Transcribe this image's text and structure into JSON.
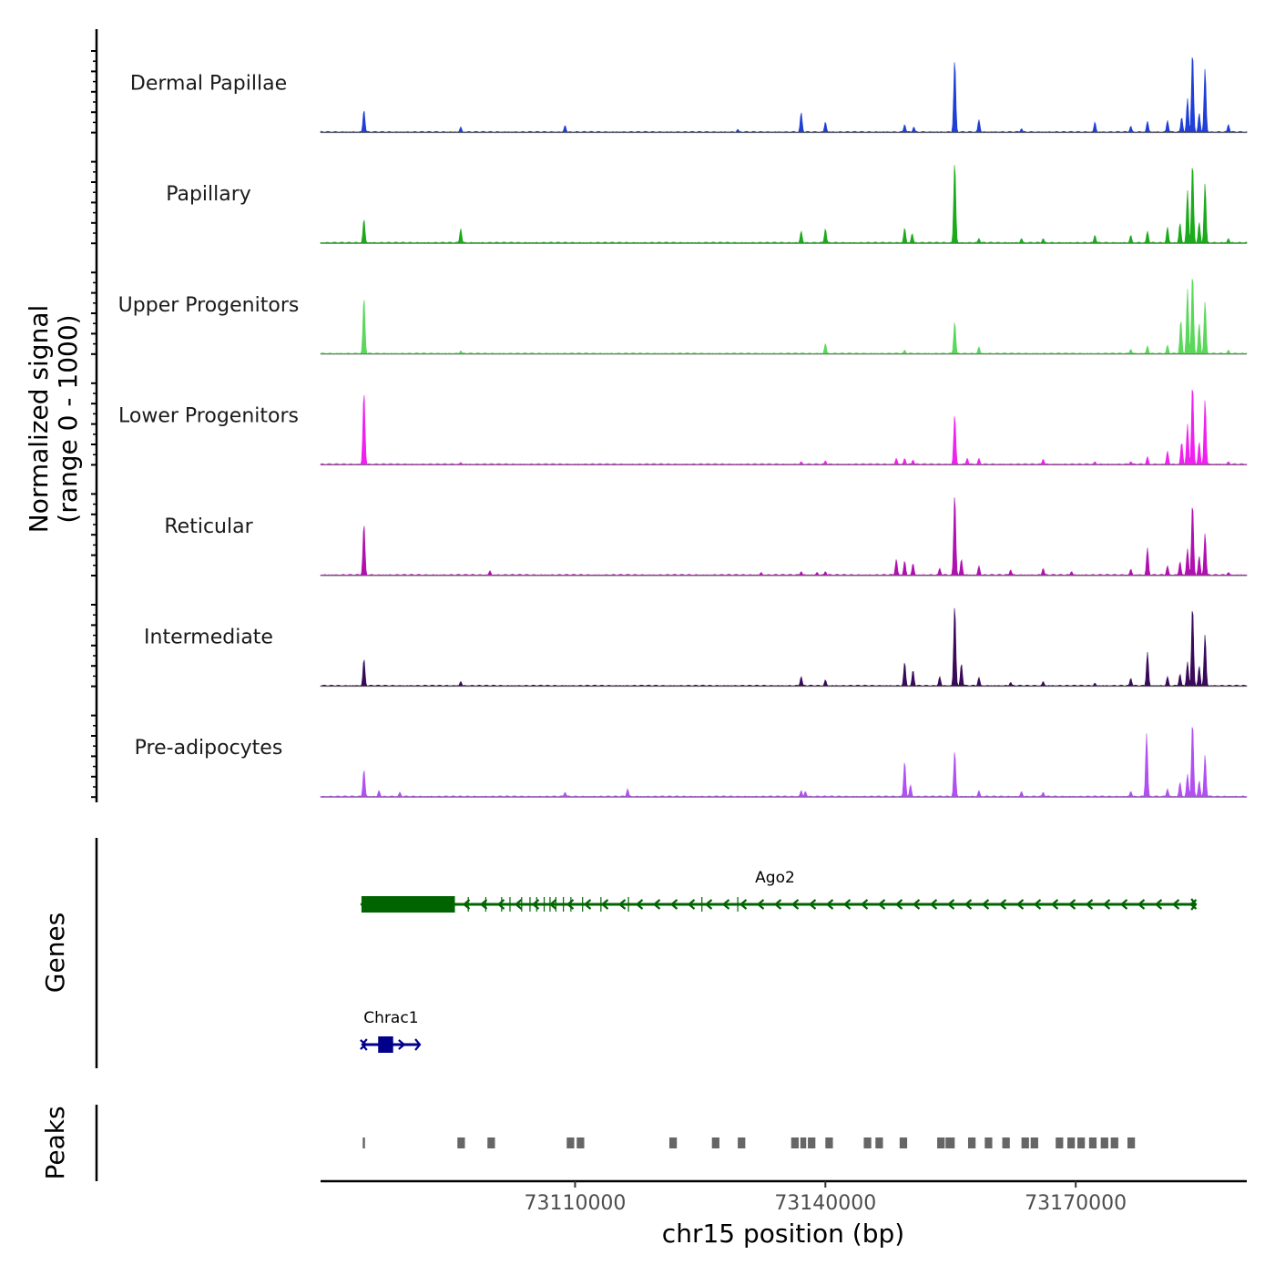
{
  "chart_data": {
    "type": "area",
    "title": "",
    "chromosome": "chr15",
    "xlabel": "chr15 position (bp)",
    "ylabel_line1": "Normalized signal",
    "ylabel_line2": "(range 0 - 1000)",
    "xlim": [
      73079500,
      73190500
    ],
    "x_ticks": [
      {
        "value": 73110000,
        "label": "73110000"
      },
      {
        "value": 73140000,
        "label": "73140000"
      },
      {
        "value": 73170000,
        "label": "73170000"
      }
    ],
    "signal_range": [
      0,
      1000
    ],
    "tracks": [
      {
        "name": "Dermal Papillae",
        "color": "#1f3fd6",
        "peaks": [
          [
            73084700,
            280
          ],
          [
            73096300,
            70
          ],
          [
            73108800,
            90
          ],
          [
            73129500,
            40
          ],
          [
            73137100,
            250
          ],
          [
            73140000,
            130
          ],
          [
            73149500,
            100
          ],
          [
            73150600,
            70
          ],
          [
            73155500,
            900
          ],
          [
            73158400,
            160
          ],
          [
            73163500,
            50
          ],
          [
            73172300,
            130
          ],
          [
            73176600,
            80
          ],
          [
            73178600,
            140
          ],
          [
            73181000,
            150
          ],
          [
            73182700,
            190
          ],
          [
            73183400,
            420
          ],
          [
            73184000,
            1000
          ],
          [
            73184800,
            240
          ],
          [
            73185500,
            790
          ],
          [
            73188300,
            100
          ]
        ]
      },
      {
        "name": "Papillary",
        "color": "#1aaa1a",
        "peaks": [
          [
            73084700,
            300
          ],
          [
            73096300,
            180
          ],
          [
            73137100,
            150
          ],
          [
            73140000,
            180
          ],
          [
            73149500,
            190
          ],
          [
            73150400,
            120
          ],
          [
            73155500,
            1000
          ],
          [
            73158400,
            60
          ],
          [
            73163500,
            60
          ],
          [
            73166100,
            60
          ],
          [
            73172300,
            100
          ],
          [
            73176600,
            100
          ],
          [
            73178600,
            150
          ],
          [
            73181000,
            200
          ],
          [
            73182500,
            250
          ],
          [
            73183400,
            650
          ],
          [
            73184000,
            1000
          ],
          [
            73184800,
            260
          ],
          [
            73185500,
            740
          ],
          [
            73188300,
            60
          ]
        ]
      },
      {
        "name": "Upper Progenitors",
        "color": "#5ad85a",
        "peaks": [
          [
            73084700,
            700
          ],
          [
            73096300,
            40
          ],
          [
            73140000,
            130
          ],
          [
            73149500,
            50
          ],
          [
            73155500,
            400
          ],
          [
            73158400,
            90
          ],
          [
            73176600,
            60
          ],
          [
            73178600,
            100
          ],
          [
            73181000,
            110
          ],
          [
            73182600,
            420
          ],
          [
            73183400,
            800
          ],
          [
            73184000,
            1000
          ],
          [
            73184800,
            380
          ],
          [
            73185500,
            650
          ],
          [
            73188300,
            50
          ]
        ]
      },
      {
        "name": "Lower Progenitors",
        "color": "#f020f0",
        "peaks": [
          [
            73084700,
            900
          ],
          [
            73096300,
            30
          ],
          [
            73137100,
            40
          ],
          [
            73140000,
            50
          ],
          [
            73148500,
            80
          ],
          [
            73149500,
            80
          ],
          [
            73150500,
            60
          ],
          [
            73155500,
            620
          ],
          [
            73157000,
            80
          ],
          [
            73158400,
            80
          ],
          [
            73166100,
            70
          ],
          [
            73172300,
            40
          ],
          [
            73176600,
            40
          ],
          [
            73178600,
            100
          ],
          [
            73181000,
            170
          ],
          [
            73182700,
            280
          ],
          [
            73183400,
            500
          ],
          [
            73184000,
            1000
          ],
          [
            73184800,
            280
          ],
          [
            73185500,
            800
          ],
          [
            73188300,
            40
          ]
        ]
      },
      {
        "name": "Reticular",
        "color": "#b010b0",
        "peaks": [
          [
            73084700,
            640
          ],
          [
            73099800,
            60
          ],
          [
            73132300,
            40
          ],
          [
            73137100,
            50
          ],
          [
            73139000,
            40
          ],
          [
            73140000,
            50
          ],
          [
            73148500,
            200
          ],
          [
            73149500,
            180
          ],
          [
            73150500,
            150
          ],
          [
            73153700,
            90
          ],
          [
            73155500,
            1000
          ],
          [
            73156300,
            200
          ],
          [
            73158400,
            120
          ],
          [
            73162200,
            70
          ],
          [
            73166100,
            90
          ],
          [
            73169500,
            50
          ],
          [
            73176600,
            80
          ],
          [
            73178600,
            340
          ],
          [
            73181000,
            120
          ],
          [
            73182500,
            170
          ],
          [
            73183400,
            330
          ],
          [
            73184000,
            900
          ],
          [
            73184800,
            240
          ],
          [
            73185500,
            520
          ],
          [
            73188300,
            40
          ]
        ]
      },
      {
        "name": "Intermediate",
        "color": "#3a0a5a",
        "peaks": [
          [
            73084700,
            340
          ],
          [
            73096300,
            60
          ],
          [
            73137100,
            120
          ],
          [
            73140000,
            80
          ],
          [
            73149500,
            300
          ],
          [
            73150500,
            200
          ],
          [
            73153700,
            120
          ],
          [
            73155500,
            1000
          ],
          [
            73156300,
            280
          ],
          [
            73158400,
            110
          ],
          [
            73162200,
            50
          ],
          [
            73166100,
            60
          ],
          [
            73172300,
            40
          ],
          [
            73176600,
            100
          ],
          [
            73178600,
            420
          ],
          [
            73181000,
            120
          ],
          [
            73182500,
            150
          ],
          [
            73183400,
            300
          ],
          [
            73184000,
            1000
          ],
          [
            73184800,
            250
          ],
          [
            73185500,
            640
          ]
        ]
      },
      {
        "name": "Pre-adipocytes",
        "color": "#b050f0",
        "peaks": [
          [
            73084700,
            340
          ],
          [
            73086500,
            80
          ],
          [
            73089000,
            60
          ],
          [
            73108800,
            60
          ],
          [
            73116300,
            100
          ],
          [
            73137100,
            80
          ],
          [
            73137600,
            70
          ],
          [
            73149500,
            440
          ],
          [
            73150200,
            150
          ],
          [
            73155500,
            570
          ],
          [
            73158400,
            80
          ],
          [
            73163500,
            70
          ],
          [
            73166100,
            60
          ],
          [
            73176600,
            70
          ],
          [
            73178500,
            780
          ],
          [
            73181000,
            100
          ],
          [
            73182500,
            180
          ],
          [
            73183400,
            280
          ],
          [
            73184000,
            930
          ],
          [
            73184800,
            200
          ],
          [
            73185500,
            520
          ]
        ]
      }
    ],
    "genes": [
      {
        "name": "Ago2",
        "color": "#006400",
        "strand": "-",
        "start": 73084400,
        "end": 73184400,
        "thick_start": 73084400,
        "thick_end": 73095600,
        "exons": [
          73097200,
          73099300,
          73101200,
          73102200,
          73103600,
          73104600,
          73105400,
          73106300,
          73107000,
          73107700,
          73108600,
          73109500,
          73110900,
          73113100,
          73116400,
          73125200,
          73129500
        ]
      },
      {
        "name": "Chrac1",
        "color": "#00008b",
        "strand": "+",
        "start": 73084500,
        "end": 73091400,
        "thick_start": 73086400,
        "thick_end": 73088200,
        "exons": []
      }
    ],
    "peaks_track": [
      [
        73084550,
        73084750
      ],
      [
        73095900,
        73096800
      ],
      [
        73099500,
        73100400
      ],
      [
        73109000,
        73109900
      ],
      [
        73110200,
        73111100
      ],
      [
        73121300,
        73122200
      ],
      [
        73126400,
        73127300
      ],
      [
        73129500,
        73130400
      ],
      [
        73135900,
        73136800
      ],
      [
        73137000,
        73137700
      ],
      [
        73137900,
        73138800
      ],
      [
        73140000,
        73140900
      ],
      [
        73144600,
        73145500
      ],
      [
        73146000,
        73146900
      ],
      [
        73148900,
        73149800
      ],
      [
        73153400,
        73154300
      ],
      [
        73154400,
        73155500
      ],
      [
        73157100,
        73158000
      ],
      [
        73159100,
        73160000
      ],
      [
        73161200,
        73162100
      ],
      [
        73163500,
        73164400
      ],
      [
        73164600,
        73165500
      ],
      [
        73167600,
        73168500
      ],
      [
        73169000,
        73169900
      ],
      [
        73170200,
        73171100
      ],
      [
        73171600,
        73172500
      ],
      [
        73173000,
        73173900
      ],
      [
        73174200,
        73175100
      ],
      [
        73176200,
        73177100
      ]
    ],
    "panel_titles": {
      "genes": "Genes",
      "peaks": "Peaks"
    }
  }
}
